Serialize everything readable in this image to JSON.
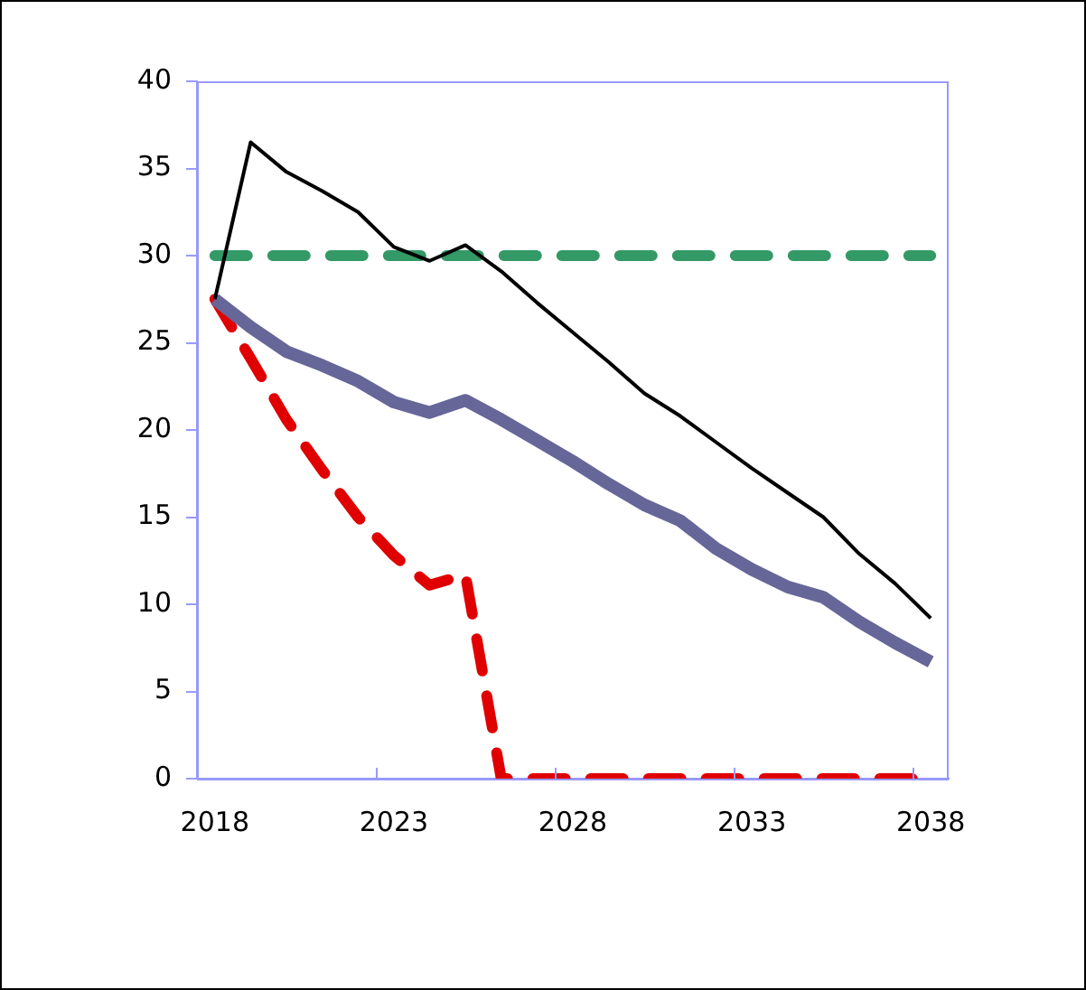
{
  "chart_data": {
    "type": "line",
    "categories": [
      "2018",
      null,
      null,
      null,
      null,
      "2023",
      null,
      null,
      null,
      null,
      "2028",
      null,
      null,
      null,
      null,
      "2033",
      null,
      null,
      null,
      null,
      "2038"
    ],
    "series": [
      {
        "color": "#000000",
        "values": [
          27.5,
          36.5,
          34.8,
          33.7,
          32.5,
          30.5,
          29.7,
          30.6,
          29.1,
          27.3,
          25.6,
          23.9,
          22.1,
          20.8,
          19.3,
          17.8,
          16.4,
          15.0,
          12.9,
          11.2,
          9.2
        ]
      },
      {
        "color": "#339966",
        "line_style": "dashed",
        "values": [
          30,
          30,
          30,
          30,
          30,
          30,
          30,
          30,
          30,
          30,
          30,
          30,
          30,
          30,
          30,
          30,
          30,
          30,
          30,
          30,
          30
        ]
      },
      {
        "color": "#666699",
        "values": [
          27.5,
          25.9,
          24.5,
          23.7,
          22.8,
          21.6,
          21.0,
          21.7,
          20.6,
          19.4,
          18.2,
          16.9,
          15.7,
          14.8,
          13.2,
          12.0,
          11.0,
          10.4,
          9.0,
          7.8,
          6.7
        ]
      },
      {
        "color": "#e00000",
        "line_style": "dashed",
        "values": [
          27.5,
          24.1,
          20.6,
          17.7,
          15.0,
          12.8,
          11.1,
          11.7,
          0,
          0,
          0,
          0,
          0,
          0,
          0,
          0,
          0,
          0,
          0,
          0,
          0
        ]
      }
    ],
    "ylim": [
      0,
      40
    ],
    "yticks": [
      0,
      5,
      10,
      15,
      20,
      25,
      30,
      35,
      40
    ],
    "grid": false,
    "legend": false,
    "marker": "none"
  }
}
